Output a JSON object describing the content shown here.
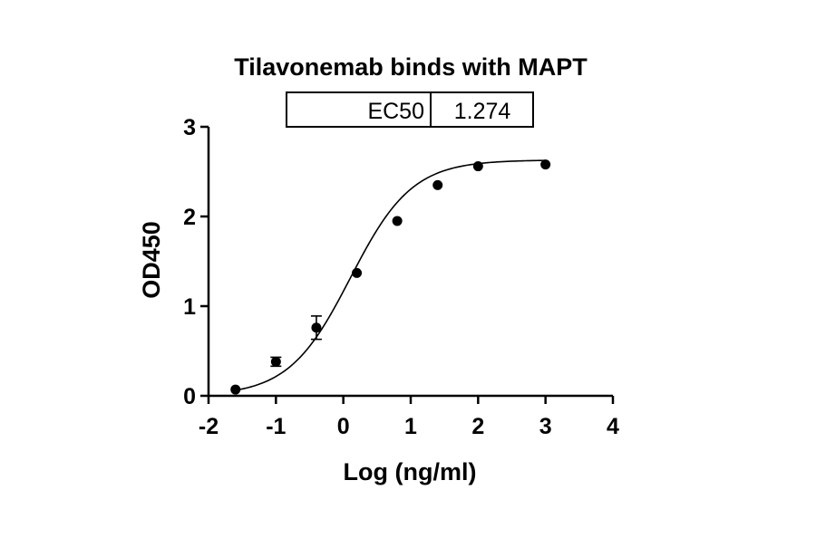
{
  "chart_data": {
    "type": "scatter",
    "title": "Tilavonemab binds with MAPT",
    "xlabel": "Log (ng/ml)",
    "ylabel": "OD450",
    "xlim": [
      -2,
      4
    ],
    "ylim": [
      0,
      3
    ],
    "x_ticks": [
      "-2",
      "-1",
      "0",
      "1",
      "2",
      "3",
      "4"
    ],
    "y_ticks": [
      "0",
      "1",
      "2",
      "3"
    ],
    "points": [
      {
        "x": -1.6,
        "y": 0.07,
        "err": 0.02
      },
      {
        "x": -1.0,
        "y": 0.38,
        "err": 0.05
      },
      {
        "x": -0.4,
        "y": 0.76,
        "err": 0.13
      },
      {
        "x": 0.2,
        "y": 1.37,
        "err": 0.03
      },
      {
        "x": 0.8,
        "y": 1.95,
        "err": 0.02
      },
      {
        "x": 1.4,
        "y": 2.35,
        "err": 0.02
      },
      {
        "x": 2.0,
        "y": 2.56,
        "err": 0.02
      },
      {
        "x": 3.0,
        "y": 2.58,
        "err": 0.02
      }
    ],
    "fit": {
      "model": "4PL",
      "bottom": 0.0,
      "top": 2.63,
      "logEC50": 0.105,
      "hill": 0.95
    },
    "ec50_table": {
      "label": "EC50",
      "value": "1.274"
    },
    "grid": false
  }
}
